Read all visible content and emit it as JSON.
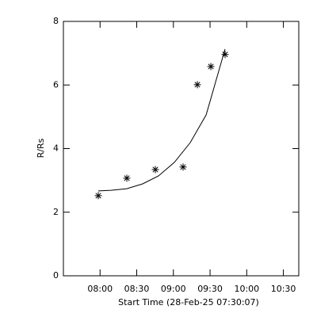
{
  "chart_data": {
    "type": "scatter",
    "xlabel": "Start Time (28-Feb-25 07:30:07)",
    "ylabel": "R/Rs",
    "x": [
      7.976,
      8.365,
      8.754,
      9.132,
      9.327,
      9.511,
      9.705
    ],
    "values": [
      2.52,
      3.07,
      3.34,
      3.42,
      6.01,
      6.58,
      6.96
    ],
    "fit_x": [
      7.976,
      8.149,
      8.365,
      8.581,
      8.797,
      9.014,
      9.23,
      9.446,
      9.705
    ],
    "fit_values": [
      2.67,
      2.69,
      2.74,
      2.89,
      3.14,
      3.57,
      4.19,
      5.06,
      7.13
    ],
    "color": "#000000",
    "xlim": [
      7.5,
      10.71
    ],
    "xticks": [
      {
        "value": 8,
        "label": "08:00"
      },
      {
        "value": 8.5,
        "label": "08:30"
      },
      {
        "value": 9,
        "label": "09:00"
      },
      {
        "value": 9.5,
        "label": "09:30"
      },
      {
        "value": 10,
        "label": "10:00"
      },
      {
        "value": 10.5,
        "label": "10:30"
      }
    ],
    "ylim": [
      0,
      8
    ],
    "yticks": [
      0,
      2,
      4,
      6,
      8
    ]
  }
}
